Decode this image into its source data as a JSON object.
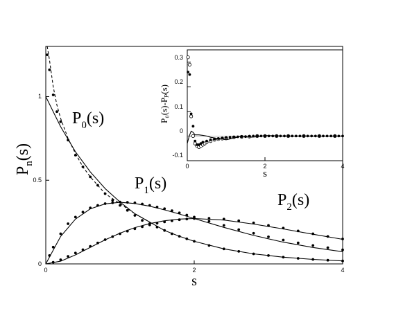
{
  "chart_data": [
    {
      "type": "line",
      "xlim": [
        0,
        4
      ],
      "ylim": [
        0,
        1.3
      ],
      "xticks": [
        "0",
        "2",
        "4"
      ],
      "yticks": [
        "0",
        "0.5",
        "1"
      ],
      "xlabel": "s",
      "ylabel_main": "P",
      "ylabel_sub": "n",
      "ylabel_tail": "(s)",
      "annotations": [
        {
          "main": "P",
          "sub": "0",
          "tail": "(s)"
        },
        {
          "main": "P",
          "sub": "1",
          "tail": "(s)"
        },
        {
          "main": "P",
          "sub": "2",
          "tail": "(s)"
        }
      ],
      "series": [
        {
          "style": "solid",
          "x": [
            0,
            0.2,
            0.4,
            0.6,
            0.8,
            1.0,
            1.2,
            1.4,
            1.6,
            1.8,
            2.0,
            2.4,
            2.8,
            3.2,
            3.6,
            4.0
          ],
          "y": [
            1.0,
            0.82,
            0.67,
            0.55,
            0.45,
            0.37,
            0.3,
            0.25,
            0.2,
            0.165,
            0.135,
            0.09,
            0.06,
            0.04,
            0.027,
            0.018
          ]
        },
        {
          "style": "solid",
          "x": [
            0,
            0.2,
            0.4,
            0.6,
            0.8,
            1.0,
            1.2,
            1.4,
            1.6,
            1.8,
            2.0,
            2.4,
            2.8,
            3.2,
            3.6,
            4.0
          ],
          "y": [
            0,
            0.164,
            0.268,
            0.329,
            0.359,
            0.368,
            0.361,
            0.345,
            0.323,
            0.298,
            0.271,
            0.218,
            0.17,
            0.13,
            0.098,
            0.073
          ]
        },
        {
          "style": "solid",
          "x": [
            0,
            0.2,
            0.4,
            0.6,
            0.8,
            1.0,
            1.2,
            1.4,
            1.6,
            1.8,
            2.0,
            2.4,
            2.8,
            3.2,
            3.6,
            4.0
          ],
          "y": [
            0,
            0.016,
            0.054,
            0.099,
            0.144,
            0.184,
            0.217,
            0.241,
            0.258,
            0.268,
            0.271,
            0.262,
            0.238,
            0.209,
            0.177,
            0.147
          ]
        },
        {
          "style": "dashed",
          "x": [
            0.02,
            0.05,
            0.1,
            0.15,
            0.2,
            0.3,
            0.4,
            0.5,
            0.6,
            0.8,
            1.0,
            1.2,
            1.4
          ],
          "y": [
            1.32,
            1.22,
            1.06,
            0.95,
            0.87,
            0.75,
            0.66,
            0.58,
            0.52,
            0.42,
            0.36,
            0.3,
            0.25
          ]
        },
        {
          "style": "filled-dots",
          "x": [
            0.02,
            0.05,
            0.1,
            0.15,
            0.2,
            0.3,
            0.4,
            0.5,
            0.6,
            0.7,
            0.8,
            0.9,
            1.0,
            1.1,
            1.2,
            1.3,
            1.4,
            1.5,
            1.6,
            1.7,
            1.8,
            1.9,
            2.0,
            2.2,
            2.4,
            2.6,
            2.8,
            3.0,
            3.2,
            3.4,
            3.6,
            3.8,
            4.0
          ],
          "y": [
            1.25,
            1.16,
            1.01,
            0.91,
            0.85,
            0.74,
            0.65,
            0.58,
            0.52,
            0.47,
            0.42,
            0.38,
            0.35,
            0.32,
            0.29,
            0.26,
            0.24,
            0.22,
            0.2,
            0.18,
            0.165,
            0.15,
            0.135,
            0.11,
            0.09,
            0.075,
            0.06,
            0.05,
            0.04,
            0.033,
            0.027,
            0.022,
            0.018
          ]
        },
        {
          "style": "filled-dots",
          "x": [
            0.05,
            0.1,
            0.2,
            0.3,
            0.4,
            0.5,
            0.6,
            0.7,
            0.8,
            0.9,
            1.0,
            1.1,
            1.2,
            1.3,
            1.4,
            1.5,
            1.6,
            1.7,
            1.8,
            1.9,
            2.0,
            2.2,
            2.4,
            2.6,
            2.8,
            3.0,
            3.2,
            3.4,
            3.6,
            3.8,
            4.0
          ],
          "y": [
            0.05,
            0.1,
            0.18,
            0.24,
            0.28,
            0.31,
            0.335,
            0.35,
            0.36,
            0.365,
            0.37,
            0.368,
            0.365,
            0.358,
            0.35,
            0.34,
            0.33,
            0.318,
            0.305,
            0.292,
            0.28,
            0.255,
            0.23,
            0.205,
            0.183,
            0.162,
            0.143,
            0.126,
            0.11,
            0.097,
            0.084
          ]
        },
        {
          "style": "filled-dots",
          "x": [
            0.1,
            0.2,
            0.3,
            0.4,
            0.5,
            0.6,
            0.7,
            0.8,
            0.9,
            1.0,
            1.1,
            1.2,
            1.3,
            1.4,
            1.5,
            1.6,
            1.7,
            1.8,
            1.9,
            2.0,
            2.2,
            2.4,
            2.6,
            2.8,
            3.0,
            3.2,
            3.4,
            3.6,
            3.8,
            4.0
          ],
          "y": [
            0.01,
            0.025,
            0.045,
            0.065,
            0.085,
            0.105,
            0.125,
            0.145,
            0.163,
            0.18,
            0.196,
            0.21,
            0.222,
            0.233,
            0.243,
            0.251,
            0.258,
            0.264,
            0.268,
            0.271,
            0.273,
            0.268,
            0.258,
            0.245,
            0.23,
            0.214,
            0.197,
            0.18,
            0.164,
            0.149
          ]
        }
      ]
    },
    {
      "type": "scatter",
      "xlim": [
        0,
        4
      ],
      "ylim": [
        -0.1,
        0.35
      ],
      "xticks": [
        "0",
        "2",
        "4"
      ],
      "yticks": [
        "-0.1",
        "0",
        "0.1",
        "0.2",
        "0.3"
      ],
      "xlabel": "s",
      "ylabel": "P₀(s)-Pₚ(s)",
      "series": [
        {
          "style": "solid",
          "x": [
            0,
            0.05,
            0.1,
            0.15,
            0.2,
            0.3,
            0.4,
            0.5,
            0.6,
            0.8,
            1.0,
            1.2,
            1.4,
            1.6,
            1.8,
            2.0,
            2.5,
            3.0,
            3.5,
            4.0
          ],
          "y": [
            -0.03,
            0.0,
            0.02,
            0.015,
            0.005,
            0.005,
            0.003,
            0.0,
            -0.005,
            -0.01,
            -0.015,
            -0.008,
            0.0,
            -0.005,
            -0.003,
            0.002,
            0.0,
            0.0,
            0.0,
            0.0
          ]
        },
        {
          "style": "open-circles",
          "x": [
            0.02,
            0.06,
            0.1,
            0.15,
            0.2,
            0.25,
            0.3,
            0.35,
            0.4,
            0.45,
            0.5,
            0.6,
            0.7,
            0.8,
            0.9,
            1.0,
            1.2,
            1.4,
            1.6,
            1.8,
            2.0,
            2.3,
            2.6,
            3.0,
            3.4,
            3.8
          ],
          "y": [
            0.32,
            0.29,
            0.08,
            0.0,
            -0.03,
            -0.04,
            -0.045,
            -0.04,
            -0.035,
            -0.03,
            -0.025,
            -0.02,
            -0.015,
            -0.012,
            -0.01,
            -0.008,
            -0.005,
            -0.003,
            -0.002,
            0.0,
            0.0,
            0.0,
            0.0,
            0.0,
            0.0,
            0.0
          ]
        },
        {
          "style": "filled-dots",
          "x": [
            0.02,
            0.06,
            0.1,
            0.15,
            0.2,
            0.25,
            0.3,
            0.35,
            0.4,
            0.5,
            0.6,
            0.7,
            0.8,
            0.9,
            1.0,
            1.1,
            1.2,
            1.3,
            1.4,
            1.5,
            1.6,
            1.7,
            1.8,
            1.9,
            2.0,
            2.1,
            2.2,
            2.3,
            2.4,
            2.5,
            2.6,
            2.7,
            2.8,
            2.9,
            3.0,
            3.1,
            3.2,
            3.3,
            3.4,
            3.5,
            3.6,
            3.7,
            3.8,
            3.9,
            4.0
          ],
          "y": [
            0.26,
            0.25,
            0.09,
            0.04,
            -0.02,
            -0.035,
            -0.035,
            -0.03,
            -0.025,
            -0.02,
            -0.015,
            -0.012,
            -0.01,
            -0.008,
            -0.006,
            -0.005,
            -0.004,
            -0.003,
            -0.002,
            -0.002,
            -0.001,
            0.0,
            0.0,
            0.0,
            0.0,
            0.0,
            0.0,
            0.0,
            0.0,
            0.0,
            0.0,
            0.0,
            0.0,
            0.0,
            0.0,
            0.0,
            0.0,
            0.0,
            0.0,
            0.0,
            0.0,
            0.0,
            0.0,
            0.0,
            0.0
          ]
        }
      ]
    }
  ]
}
